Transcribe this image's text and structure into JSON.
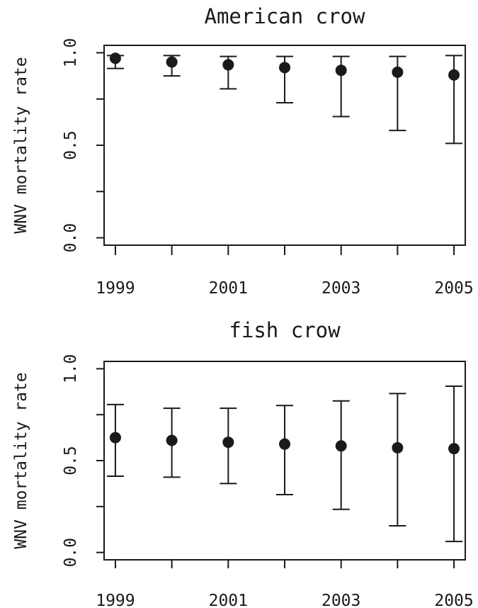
{
  "chart_data": [
    {
      "type": "scatter",
      "title": "American crow",
      "xlabel": "",
      "ylabel": "WNV mortality rate",
      "x": [
        1999,
        2000,
        2001,
        2002,
        2003,
        2004,
        2005
      ],
      "y": [
        0.97,
        0.95,
        0.935,
        0.92,
        0.905,
        0.895,
        0.88
      ],
      "lower": [
        0.915,
        0.875,
        0.805,
        0.73,
        0.655,
        0.58,
        0.51
      ],
      "upper": [
        0.985,
        0.985,
        0.98,
        0.98,
        0.98,
        0.98,
        0.985
      ],
      "xlim": [
        1998.8,
        2005.2
      ],
      "ylim": [
        -0.04,
        1.04
      ],
      "xticks": [
        1999,
        2000,
        2001,
        2002,
        2003,
        2004,
        2005
      ],
      "xtick_labels": [
        "1999",
        "",
        "2001",
        "",
        "2003",
        "",
        "2005"
      ],
      "yticks": [
        0.0,
        0.25,
        0.5,
        0.75,
        1.0
      ],
      "ytick_labels": [
        "0.0",
        "",
        "0.5",
        "",
        "1.0"
      ],
      "grid": false
    },
    {
      "type": "scatter",
      "title": "fish crow",
      "xlabel": "",
      "ylabel": "WNV mortality rate",
      "x": [
        1999,
        2000,
        2001,
        2002,
        2003,
        2004,
        2005
      ],
      "y": [
        0.625,
        0.61,
        0.6,
        0.59,
        0.58,
        0.57,
        0.565
      ],
      "lower": [
        0.415,
        0.41,
        0.375,
        0.315,
        0.235,
        0.145,
        0.06
      ],
      "upper": [
        0.805,
        0.785,
        0.785,
        0.8,
        0.825,
        0.865,
        0.905
      ],
      "xlim": [
        1998.8,
        2005.2
      ],
      "ylim": [
        -0.04,
        1.04
      ],
      "xticks": [
        1999,
        2000,
        2001,
        2002,
        2003,
        2004,
        2005
      ],
      "xtick_labels": [
        "1999",
        "",
        "2001",
        "",
        "2003",
        "",
        "2005"
      ],
      "yticks": [
        0.0,
        0.25,
        0.5,
        0.75,
        1.0
      ],
      "ytick_labels": [
        "0.0",
        "",
        "0.5",
        "",
        "1.0"
      ],
      "grid": false
    }
  ]
}
